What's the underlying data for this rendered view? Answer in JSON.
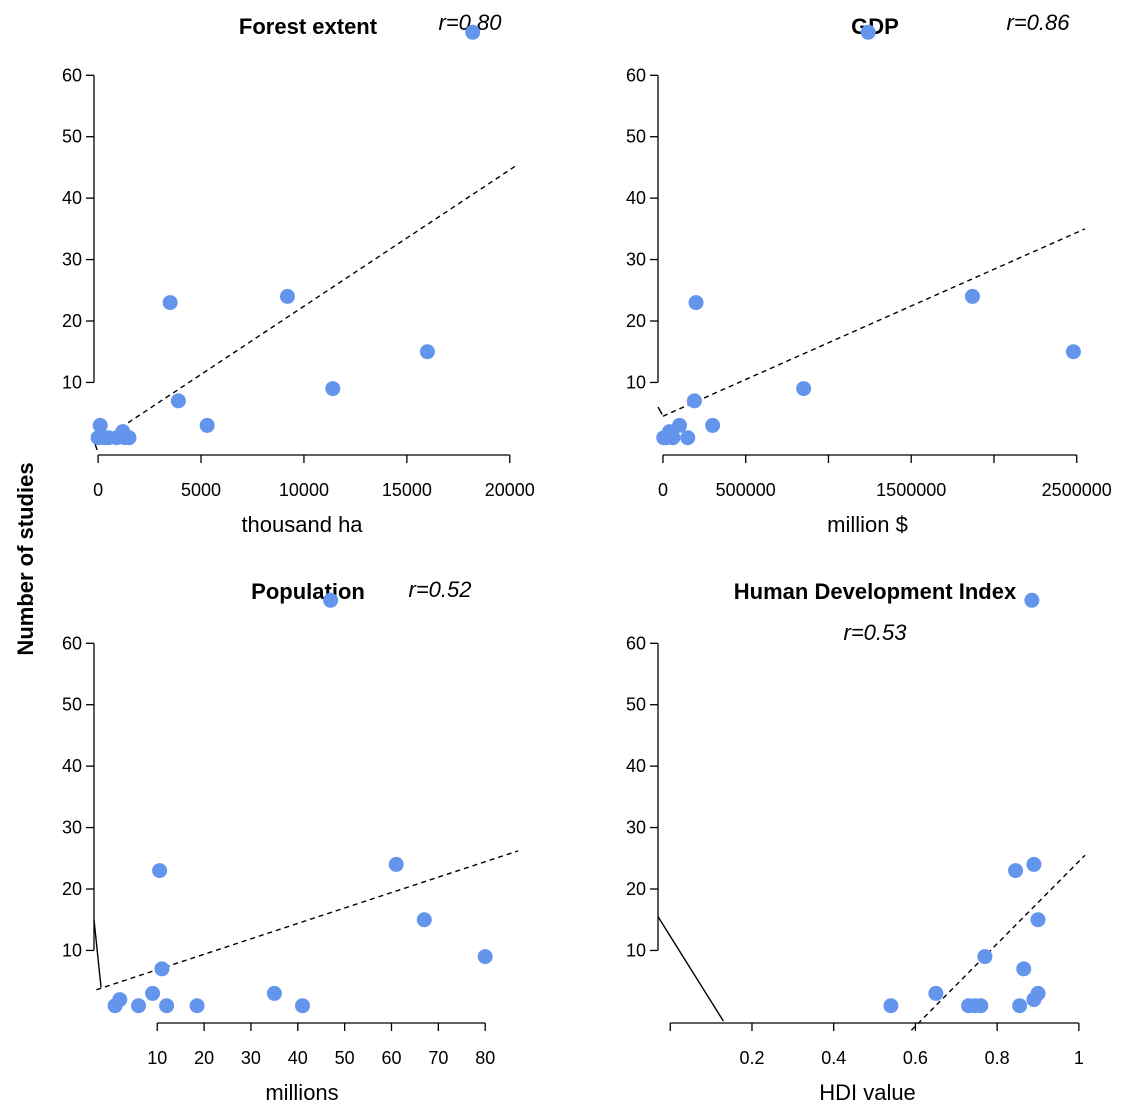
{
  "y_axis_label": "Number of studies",
  "colors": {
    "point": "#6495ed",
    "line": "#000000"
  },
  "chart_data": [
    {
      "type": "scatter",
      "title": "Forest extent",
      "r_label": "r=0.80",
      "xlabel": "thousand ha",
      "xlim": [
        -200,
        20400
      ],
      "ylim": [
        -1,
        69
      ],
      "xticks": [
        0,
        5000,
        10000,
        15000,
        20000
      ],
      "yticks": [
        10,
        20,
        30,
        40,
        50,
        60
      ],
      "points": [
        {
          "x": 0,
          "y": 1
        },
        {
          "x": 100,
          "y": 3
        },
        {
          "x": 300,
          "y": 1
        },
        {
          "x": 500,
          "y": 1
        },
        {
          "x": 900,
          "y": 1
        },
        {
          "x": 1200,
          "y": 2
        },
        {
          "x": 1300,
          "y": 1
        },
        {
          "x": 1500,
          "y": 1
        },
        {
          "x": 3500,
          "y": 23
        },
        {
          "x": 3900,
          "y": 7
        },
        {
          "x": 5300,
          "y": 3
        },
        {
          "x": 9200,
          "y": 24
        },
        {
          "x": 11400,
          "y": 9
        },
        {
          "x": 16000,
          "y": 15
        },
        {
          "x": 18200,
          "y": 67
        }
      ],
      "trend": [
        {
          "x": 0,
          "y": 0.2
        },
        {
          "x": 20400,
          "y": 45.5
        }
      ],
      "extra_lines": [
        {
          "x1": -200,
          "y1": 0.5,
          "x2": -50,
          "y2": -1
        }
      ]
    },
    {
      "type": "scatter",
      "title": "GDP",
      "r_label": "r=0.86",
      "xlabel": "million $",
      "xlim": [
        -30000,
        2550000
      ],
      "ylim": [
        -1,
        69
      ],
      "xticks": [
        0,
        500000,
        1500000,
        2500000
      ],
      "xticks_minor": [
        1000000,
        2000000
      ],
      "yticks": [
        10,
        20,
        30,
        40,
        50,
        60
      ],
      "points": [
        {
          "x": 5000,
          "y": 1
        },
        {
          "x": 20000,
          "y": 1
        },
        {
          "x": 40000,
          "y": 2
        },
        {
          "x": 60000,
          "y": 1
        },
        {
          "x": 100000,
          "y": 3
        },
        {
          "x": 150000,
          "y": 1
        },
        {
          "x": 190000,
          "y": 7
        },
        {
          "x": 200000,
          "y": 23
        },
        {
          "x": 300000,
          "y": 3
        },
        {
          "x": 850000,
          "y": 9
        },
        {
          "x": 1240000,
          "y": 67
        },
        {
          "x": 1870000,
          "y": 24
        },
        {
          "x": 2480000,
          "y": 15
        }
      ],
      "trend": [
        {
          "x": 0,
          "y": 4.5
        },
        {
          "x": 2550000,
          "y": 35
        }
      ],
      "extra_lines": [
        {
          "x1": -30000,
          "y1": 6,
          "x2": -5000,
          "y2": 4.8
        }
      ]
    },
    {
      "type": "scatter",
      "title": "Population",
      "r_label": "r=0.52",
      "xlabel": "millions",
      "xlim": [
        -3.5,
        87
      ],
      "ylim": [
        -1,
        69
      ],
      "xticks": [
        10,
        20,
        30,
        40,
        50,
        60,
        70,
        80
      ],
      "yticks": [
        10,
        20,
        30,
        40,
        50,
        60
      ],
      "points": [
        {
          "x": 1,
          "y": 1
        },
        {
          "x": 2,
          "y": 2
        },
        {
          "x": 6,
          "y": 1
        },
        {
          "x": 9,
          "y": 3
        },
        {
          "x": 10.5,
          "y": 23
        },
        {
          "x": 11,
          "y": 7
        },
        {
          "x": 12,
          "y": 1
        },
        {
          "x": 18.5,
          "y": 1
        },
        {
          "x": 35,
          "y": 3
        },
        {
          "x": 41,
          "y": 1
        },
        {
          "x": 47,
          "y": 67
        },
        {
          "x": 61,
          "y": 24
        },
        {
          "x": 67,
          "y": 15
        },
        {
          "x": 80,
          "y": 9
        }
      ],
      "trend": [
        {
          "x": -3,
          "y": 3.6
        },
        {
          "x": 87,
          "y": 26.2
        }
      ],
      "extra_lines": [
        {
          "x1": -3.5,
          "y1": 15,
          "x2": -2,
          "y2": 4
        }
      ]
    },
    {
      "type": "scatter",
      "title": "Human Development Index",
      "r_label": "r=0.53",
      "xlabel": "HDI value",
      "xlim": [
        -0.03,
        1.015
      ],
      "ylim": [
        -1,
        69
      ],
      "xticks": [
        0.2,
        0.4,
        0.6,
        0.8,
        1
      ],
      "xtick_labels": [
        "0.2",
        "0.4",
        "0.6",
        "0.8",
        "1"
      ],
      "xticks_minor": [
        0
      ],
      "yticks": [
        10,
        20,
        30,
        40,
        50,
        60
      ],
      "points": [
        {
          "x": 0.54,
          "y": 1
        },
        {
          "x": 0.65,
          "y": 3
        },
        {
          "x": 0.73,
          "y": 1
        },
        {
          "x": 0.745,
          "y": 1
        },
        {
          "x": 0.76,
          "y": 1
        },
        {
          "x": 0.77,
          "y": 9
        },
        {
          "x": 0.845,
          "y": 23
        },
        {
          "x": 0.855,
          "y": 1
        },
        {
          "x": 0.865,
          "y": 7
        },
        {
          "x": 0.885,
          "y": 67
        },
        {
          "x": 0.89,
          "y": 24
        },
        {
          "x": 0.89,
          "y": 2
        },
        {
          "x": 0.9,
          "y": 15
        },
        {
          "x": 0.9,
          "y": 3
        }
      ],
      "trend": [
        {
          "x": 0.59,
          "y": -3
        },
        {
          "x": 1.015,
          "y": 25.5
        }
      ],
      "extra_lines": [
        {
          "x1": -0.03,
          "y1": 15.5,
          "x2": 0.13,
          "y2": -1.5
        }
      ]
    }
  ]
}
